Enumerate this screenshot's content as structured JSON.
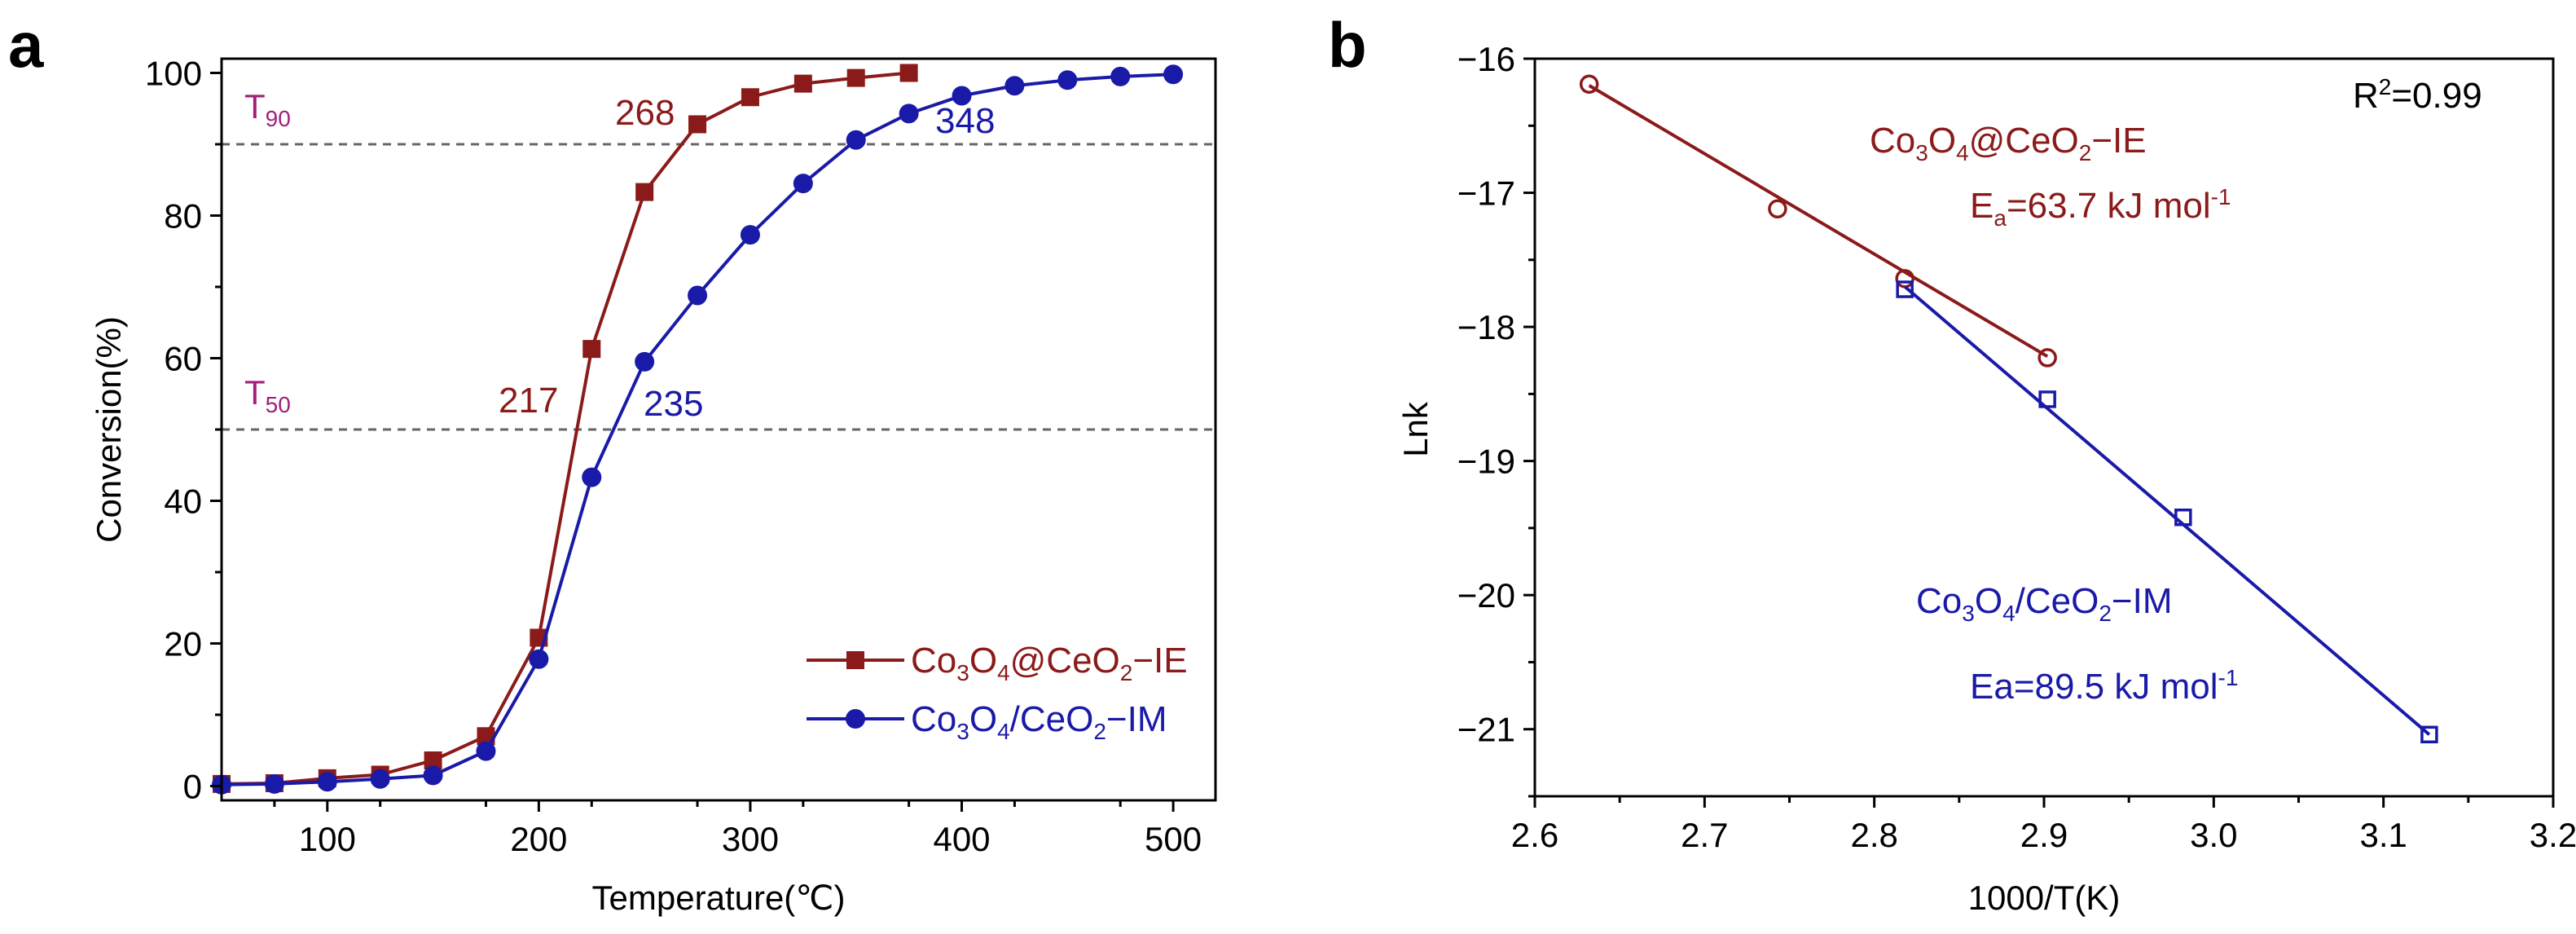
{
  "figure": {
    "panel_a_label": "a",
    "panel_b_label": "b"
  },
  "colors": {
    "ie": "#8b1a1a",
    "im": "#1a1aa8",
    "threshold_label": "#a0207a",
    "axis": "#000000",
    "ref_line": "#666666"
  },
  "chart_data": [
    {
      "panel": "a",
      "type": "line",
      "title": "",
      "xlabel": "Temperature(℃)",
      "ylabel": "Conversion(%)",
      "xlim": [
        50,
        520
      ],
      "ylim": [
        -2,
        102
      ],
      "xticks": [
        100,
        200,
        300,
        400,
        500
      ],
      "yticks": [
        0,
        20,
        40,
        60,
        80,
        100
      ],
      "grid": false,
      "legend_position": "bottom-right",
      "series": [
        {
          "name": "Co3O4@CeO2-IE",
          "legend": {
            "base": "Co",
            "s1": "3",
            "mid1": "O",
            "s2": "4",
            "mid2": "@CeO",
            "s3": "2",
            "end": "−IE"
          },
          "color_key": "ie",
          "marker": "square",
          "x": [
            50,
            75,
            100,
            125,
            150,
            175,
            200,
            225,
            250,
            275,
            300,
            325,
            350,
            375
          ],
          "y": [
            0.3,
            0.4,
            1.1,
            1.6,
            3.6,
            7.0,
            20.8,
            61.3,
            83.3,
            92.8,
            96.6,
            98.5,
            99.3,
            100.0
          ]
        },
        {
          "name": "Co3O4/CeO2-IM",
          "legend": {
            "base": "Co",
            "s1": "3",
            "mid1": "O",
            "s2": "4",
            "mid2": "/CeO",
            "s3": "2",
            "end": "−IM"
          },
          "color_key": "im",
          "marker": "circle",
          "x": [
            50,
            75,
            100,
            125,
            150,
            175,
            200,
            225,
            250,
            275,
            300,
            325,
            350,
            375,
            400,
            425,
            450,
            475,
            500
          ],
          "y": [
            0.2,
            0.3,
            0.6,
            1.0,
            1.5,
            4.9,
            17.8,
            43.3,
            59.5,
            68.8,
            77.3,
            84.5,
            90.6,
            94.3,
            96.8,
            98.2,
            99.0,
            99.5,
            99.8
          ]
        }
      ],
      "reference_lines": [
        {
          "y": 90,
          "label_base": "T",
          "label_sub": "90"
        },
        {
          "y": 50,
          "label_base": "T",
          "label_sub": "50"
        }
      ],
      "annotations": [
        {
          "text": "268",
          "x": 268,
          "y": 90,
          "color_key": "ie"
        },
        {
          "text": "217",
          "x": 217,
          "y": 50,
          "color_key": "ie"
        },
        {
          "text": "348",
          "x": 348,
          "y": 90,
          "color_key": "im"
        },
        {
          "text": "235",
          "x": 235,
          "y": 50,
          "color_key": "im"
        }
      ]
    },
    {
      "panel": "b",
      "type": "scatter",
      "title": "",
      "xlabel": "1000/T(K)",
      "ylabel": "Lnk",
      "xlim": [
        2.6,
        3.2
      ],
      "ylim": [
        -21.5,
        -16.0
      ],
      "xticks": [
        2.6,
        2.7,
        2.8,
        2.9,
        3.0,
        3.1,
        3.2
      ],
      "yticks": [
        -16,
        -17,
        -18,
        -19,
        -20,
        -21
      ],
      "grid": false,
      "series": [
        {
          "name": "Co3O4@CeO2-IE",
          "color_key": "ie",
          "marker": "open-circle",
          "x": [
            2.632,
            2.743,
            2.818,
            2.902
          ],
          "y": [
            -16.19,
            -17.12,
            -17.64,
            -18.23
          ],
          "fit": {
            "x": [
              2.632,
              2.902
            ],
            "y": [
              -16.2,
              -18.22
            ]
          }
        },
        {
          "name": "Co3O4/CeO2-IM",
          "color_key": "im",
          "marker": "open-square",
          "x": [
            2.818,
            2.902,
            2.982,
            3.127
          ],
          "y": [
            -17.72,
            -18.54,
            -19.42,
            -21.04
          ],
          "fit": {
            "x": [
              2.818,
              3.127
            ],
            "y": [
              -17.7,
              -21.04
            ]
          }
        }
      ],
      "annotations": {
        "r2": {
          "base": "R",
          "sup": "2",
          "rest": "=0.99"
        },
        "ie_name": {
          "base": "Co",
          "s1": "3",
          "mid1": "O",
          "s2": "4",
          "mid2": "@CeO",
          "s3": "2",
          "end": "−IE"
        },
        "ie_energy": {
          "base": "E",
          "sub": "a",
          "rest": "=63.7 kJ mol",
          "sup": "-1"
        },
        "im_name": {
          "base": "Co",
          "s1": "3",
          "mid1": "O",
          "s2": "4",
          "mid2": "/CeO",
          "s3": "2",
          "end": "−IM"
        },
        "im_energy": {
          "base": "Ea=89.5 kJ mol",
          "sup": "-1"
        }
      }
    }
  ]
}
